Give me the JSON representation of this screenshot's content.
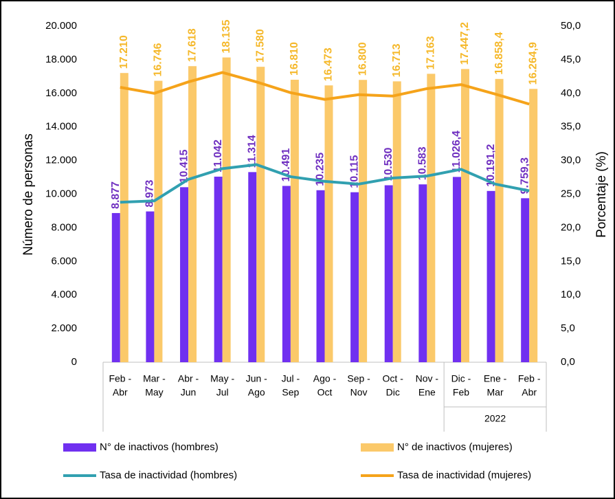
{
  "chart_data": {
    "type": "bar_line",
    "y_label": "Número de personas",
    "y2_label": "Porcentaje (%)",
    "categories": [
      [
        "Feb -",
        "Abr"
      ],
      [
        "Mar -",
        "May"
      ],
      [
        "Abr -",
        "Jun"
      ],
      [
        "May -",
        "Jul"
      ],
      [
        "Jun -",
        "Ago"
      ],
      [
        "Jul -",
        "Sep"
      ],
      [
        "Ago -",
        "Oct"
      ],
      [
        "Sep -",
        "Nov"
      ],
      [
        "Oct -",
        "Dic"
      ],
      [
        "Nov -",
        "Ene"
      ],
      [
        "Dic -",
        "Feb"
      ],
      [
        "Ene -",
        "Mar"
      ],
      [
        "Feb -",
        "Abr"
      ]
    ],
    "category_groups": [
      {
        "label": "2022",
        "from": 10,
        "to": 12
      }
    ],
    "ylim": [
      0,
      20000
    ],
    "yticks": [
      0,
      {
        "value": 2000,
        "label": "2.000"
      },
      {
        "value": 4000,
        "label": "4.000"
      },
      {
        "value": 6000,
        "label": "6.000"
      },
      {
        "value": 8000,
        "label": "8.000"
      },
      {
        "value": 10000,
        "label": "10.000"
      },
      {
        "value": 12000,
        "label": "12.000"
      },
      {
        "value": 14000,
        "label": "14.000"
      },
      {
        "value": 16000,
        "label": "16.000"
      },
      {
        "value": 18000,
        "label": "18.000"
      },
      {
        "value": 20000,
        "label": "20.000"
      }
    ],
    "y2lim": [
      0,
      50
    ],
    "y2ticks": [
      {
        "value": 0,
        "label": "0,0"
      },
      {
        "value": 5,
        "label": "5,0"
      },
      {
        "value": 10,
        "label": "10,0"
      },
      {
        "value": 15,
        "label": "15,0"
      },
      {
        "value": 20,
        "label": "20,0"
      },
      {
        "value": 25,
        "label": "25,0"
      },
      {
        "value": 30,
        "label": "30,0"
      },
      {
        "value": 35,
        "label": "35,0"
      },
      {
        "value": 40,
        "label": "40,0"
      },
      {
        "value": 45,
        "label": "45,0"
      },
      {
        "value": 50,
        "label": "50,0"
      }
    ],
    "series": [
      {
        "name": "N° de inactivos (hombres)",
        "type": "bar",
        "color": "#7030f0",
        "label_color": "#7030c0",
        "values": [
          8877,
          8973,
          10415,
          11042,
          11314,
          10491,
          10235,
          10115,
          10530,
          10583,
          11026.4,
          10191.2,
          9759.3
        ],
        "value_labels": [
          "8.877",
          "8.973",
          "10.415",
          "11.042",
          "11.314",
          "10.491",
          "10.235",
          "10.115",
          "10.530",
          "10.583",
          "11.026,4",
          "10.191,2",
          "9.759,3"
        ]
      },
      {
        "name": "N° de inactivos (mujeres)",
        "type": "bar",
        "color": "#fbc96a",
        "label_color": "#f5b82a",
        "values": [
          17210,
          16746,
          17618,
          18135,
          17580,
          16810,
          16473,
          16800,
          16713,
          17163,
          17447.2,
          16858.4,
          16264.9
        ],
        "value_labels": [
          "17.210",
          "16.746",
          "17.618",
          "18.135",
          "17.580",
          "16.810",
          "16.473",
          "16.800",
          "16.713",
          "17.163",
          "17.447,2",
          "16.858,4",
          "16.264,9"
        ]
      },
      {
        "name": "Tasa de inactividad (hombres)",
        "type": "line",
        "axis": "y2",
        "color": "#31a0b0",
        "values": [
          23.8,
          24.0,
          27.2,
          28.8,
          29.4,
          27.6,
          26.9,
          26.5,
          27.4,
          27.7,
          28.7,
          26.5,
          25.5
        ]
      },
      {
        "name": "Tasa de inactividad (mujeres)",
        "type": "line",
        "axis": "y2",
        "color": "#f5a31a",
        "values": [
          40.9,
          40.0,
          41.7,
          43.1,
          41.7,
          40.1,
          39.1,
          39.8,
          39.6,
          40.7,
          41.3,
          39.9,
          38.4
        ]
      }
    ]
  }
}
